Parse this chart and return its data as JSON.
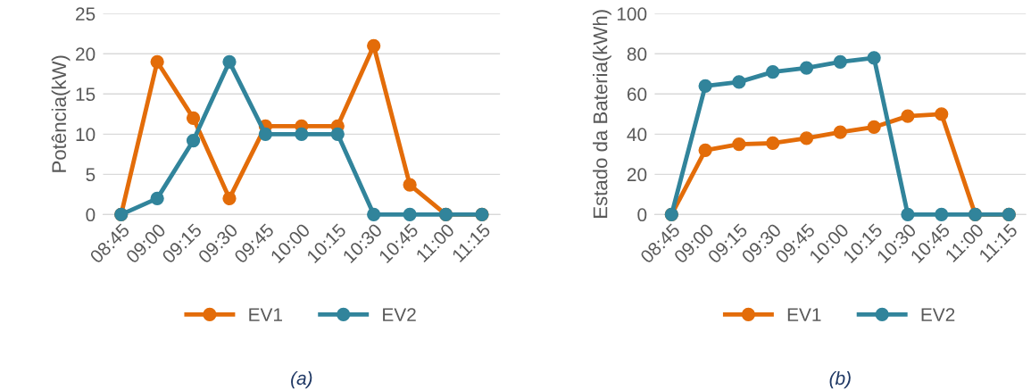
{
  "chart_data": [
    {
      "type": "line",
      "ylabel": "Potência(kW)",
      "categories": [
        "08:45",
        "09:00",
        "09:15",
        "09:30",
        "09:45",
        "10:00",
        "10:15",
        "10:30",
        "10:45",
        "11:00",
        "11:15"
      ],
      "series": [
        {
          "name": "EV1",
          "color": "#e36c09",
          "values": [
            0,
            19,
            12,
            2,
            11,
            11,
            11,
            21,
            3.7,
            0,
            0
          ]
        },
        {
          "name": "EV2",
          "color": "#31849b",
          "values": [
            0,
            2,
            9.2,
            19,
            10,
            10,
            10,
            0,
            0,
            0,
            0
          ]
        }
      ],
      "ylim": [
        0,
        25
      ],
      "yticks": [
        0,
        5,
        10,
        15,
        20,
        25
      ],
      "grid": "y",
      "legend": "bottom",
      "marker": "circle",
      "line_style": "solid",
      "annotations": [
        "(a)"
      ]
    },
    {
      "type": "line",
      "ylabel": "Estado da Bateria(kWh)",
      "categories": [
        "08:45",
        "09:00",
        "09:15",
        "09:30",
        "09:45",
        "10:00",
        "10:15",
        "10:30",
        "10:45",
        "11:00",
        "11:15"
      ],
      "series": [
        {
          "name": "EV1",
          "color": "#e36c09",
          "values": [
            0,
            32,
            35,
            35.5,
            38,
            41,
            43.5,
            49,
            50,
            0,
            0
          ]
        },
        {
          "name": "EV2",
          "color": "#31849b",
          "values": [
            0,
            64,
            66,
            71,
            73,
            76,
            78,
            0,
            0,
            0,
            0
          ]
        }
      ],
      "ylim": [
        0,
        100
      ],
      "yticks": [
        0,
        20,
        40,
        60,
        80,
        100
      ],
      "grid": "y",
      "legend": "bottom",
      "marker": "circle",
      "line_style": "solid",
      "annotations": [
        "(b)"
      ]
    }
  ]
}
